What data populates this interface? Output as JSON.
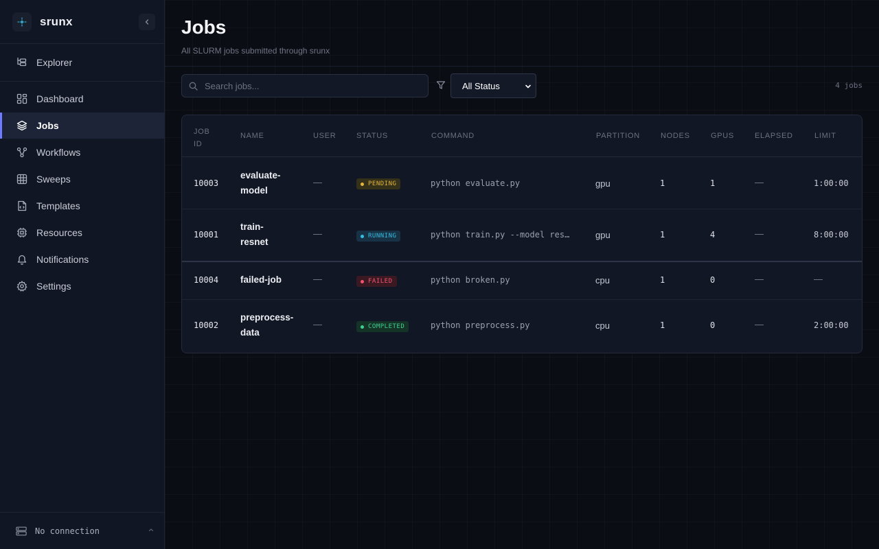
{
  "app": {
    "name": "srunx",
    "logo_icon": "network-icon"
  },
  "sidebar": {
    "top_item": {
      "label": "Explorer",
      "icon": "folder-tree-icon"
    },
    "items": [
      {
        "label": "Dashboard",
        "icon": "layout-grid-icon",
        "active": false
      },
      {
        "label": "Jobs",
        "icon": "layers-icon",
        "active": true
      },
      {
        "label": "Workflows",
        "icon": "workflow-icon",
        "active": false
      },
      {
        "label": "Sweeps",
        "icon": "grid-icon",
        "active": false
      },
      {
        "label": "Templates",
        "icon": "file-code-icon",
        "active": false
      },
      {
        "label": "Resources",
        "icon": "cpu-icon",
        "active": false
      },
      {
        "label": "Notifications",
        "icon": "bell-icon",
        "active": false
      },
      {
        "label": "Settings",
        "icon": "gear-icon",
        "active": false
      }
    ],
    "connection": {
      "label": "No connection",
      "icon": "server-icon"
    }
  },
  "header": {
    "title": "Jobs",
    "subtitle": "All SLURM jobs submitted through srunx"
  },
  "toolbar": {
    "search_placeholder": "Search jobs...",
    "search_value": "",
    "status_filter": "All Status",
    "job_count": "4 jobs"
  },
  "table": {
    "columns": [
      "JOB ID",
      "NAME",
      "USER",
      "STATUS",
      "COMMAND",
      "PARTITION",
      "NODES",
      "GPUS",
      "ELAPSED",
      "LIMIT"
    ],
    "rows": [
      {
        "job_id": "10003",
        "name": "evaluate-model",
        "name_lines": [
          "evaluate-",
          "model"
        ],
        "user": "—",
        "status": "PENDING",
        "status_key": "pending",
        "command": "python evaluate.py",
        "partition": "gpu",
        "nodes": "1",
        "gpus": "1",
        "elapsed": "—",
        "limit": "1:00:00"
      },
      {
        "job_id": "10001",
        "name": "train-resnet",
        "name_lines": [
          "train-",
          "resnet"
        ],
        "user": "—",
        "status": "RUNNING",
        "status_key": "running",
        "command": "python train.py --model res…",
        "partition": "gpu",
        "nodes": "1",
        "gpus": "4",
        "elapsed": "—",
        "limit": "8:00:00"
      },
      {
        "job_id": "10004",
        "name": "failed-job",
        "name_lines": [
          "failed-job"
        ],
        "user": "—",
        "status": "FAILED",
        "status_key": "failed",
        "command": "python broken.py",
        "partition": "cpu",
        "nodes": "1",
        "gpus": "0",
        "elapsed": "—",
        "limit": "—"
      },
      {
        "job_id": "10002",
        "name": "preprocess-data",
        "name_lines": [
          "preprocess-",
          "data"
        ],
        "user": "—",
        "status": "COMPLETED",
        "status_key": "completed",
        "command": "python preprocess.py",
        "partition": "cpu",
        "nodes": "1",
        "gpus": "0",
        "elapsed": "—",
        "limit": "2:00:00"
      }
    ]
  },
  "colors": {
    "accent": "#6f7cff",
    "pending": "#e4b53a",
    "running": "#36bde3",
    "failed": "#f25470",
    "completed": "#3fd091"
  }
}
